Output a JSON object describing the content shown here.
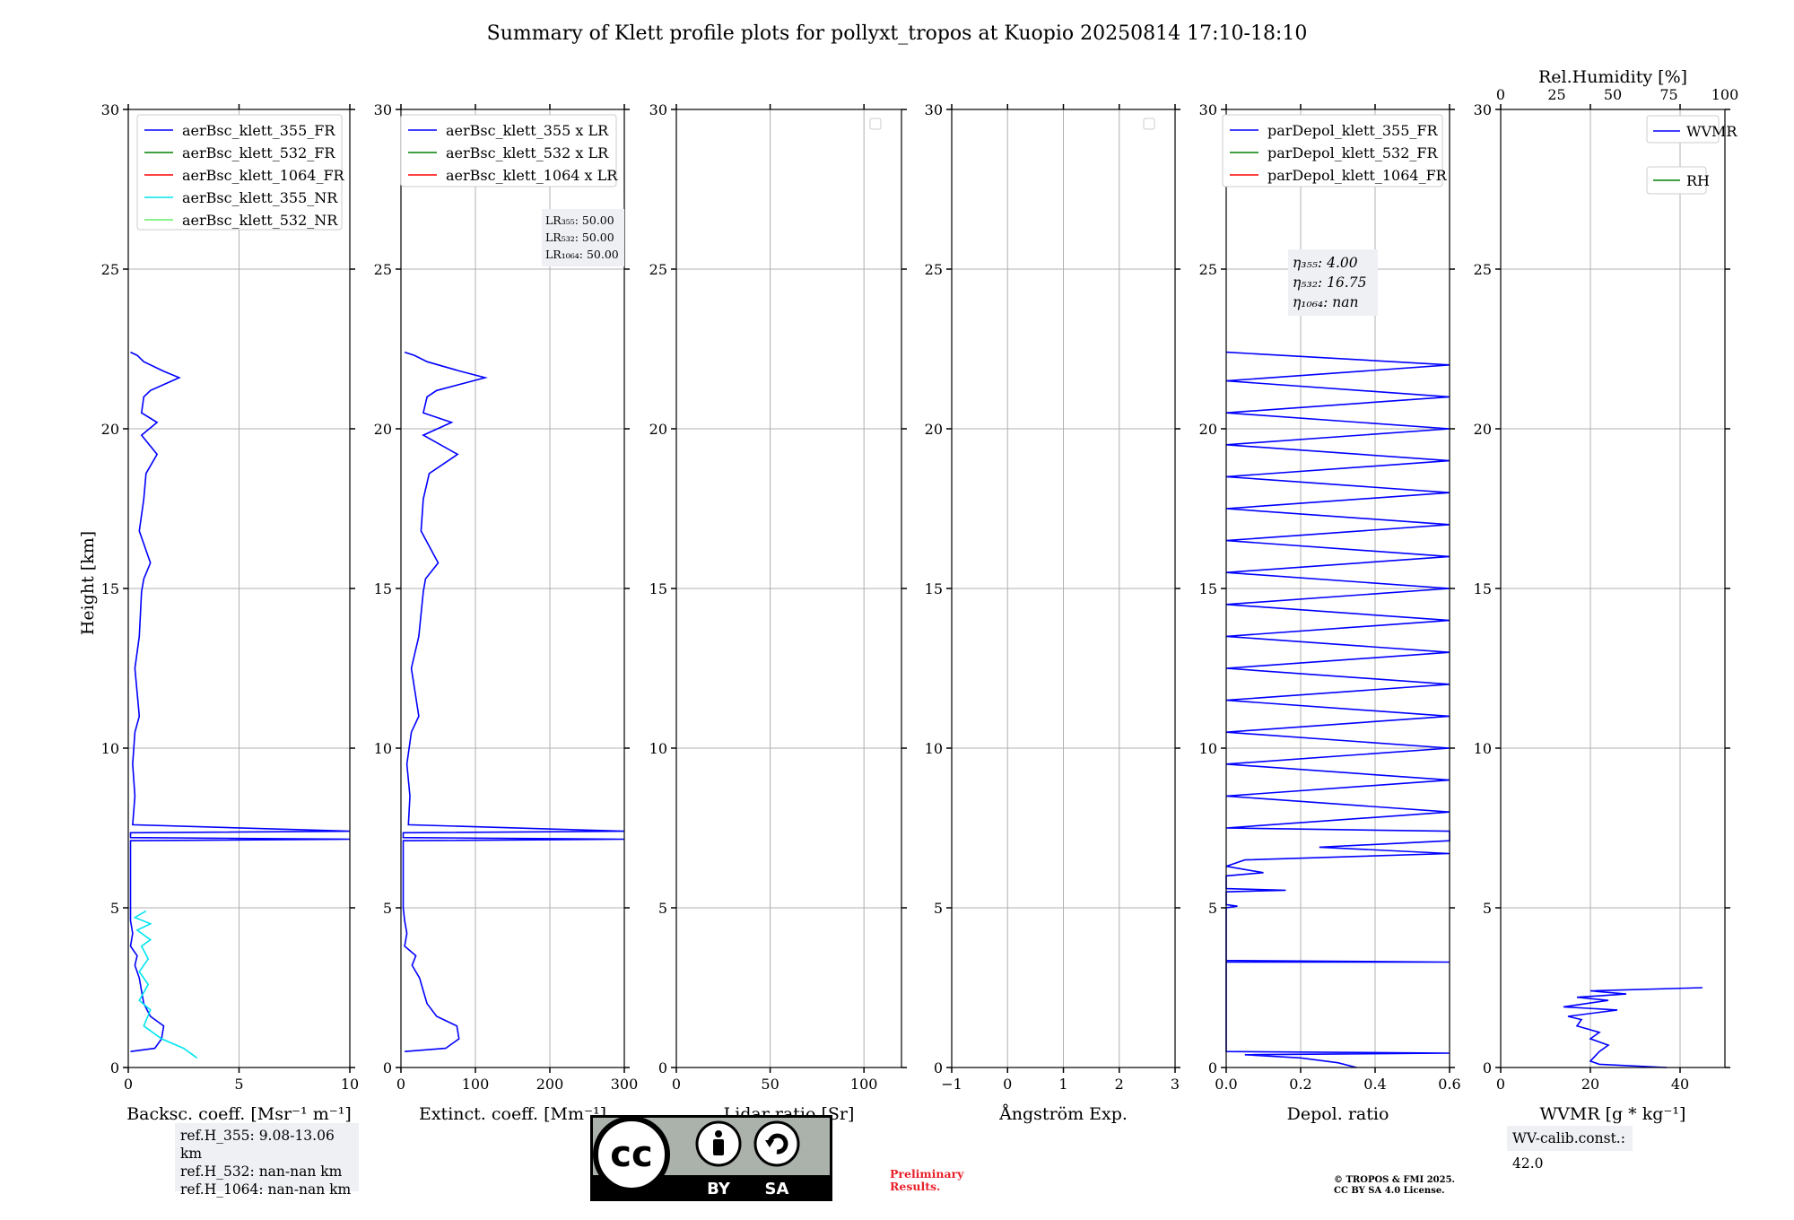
{
  "title": "Summary of Klett profile plots for pollyxt_tropos at Kuopio 20250814 17:10-18:10",
  "ylabel": "Height [km]",
  "y_ticks": [
    "0",
    "5",
    "10",
    "15",
    "20",
    "25",
    "30"
  ],
  "colors": {
    "c355": "#0000ff",
    "c532": "#008000",
    "c1064": "#ff0000",
    "c355nr": "#00e5ee",
    "c532nr": "#66ee66"
  },
  "panels": {
    "bsc": {
      "xlabel": "Backsc. coeff. [Msr⁻¹ m⁻¹]",
      "xticks": [
        "0",
        "5",
        "10"
      ],
      "legend": [
        "aerBsc_klett_355_FR",
        "aerBsc_klett_532_FR",
        "aerBsc_klett_1064_FR",
        "aerBsc_klett_355_NR",
        "aerBsc_klett_532_NR"
      ]
    },
    "ext": {
      "xlabel": "Extinct. coeff. [Mm⁻¹]",
      "xticks": [
        "0",
        "100",
        "200",
        "300"
      ],
      "legend": [
        "aerBsc_klett_355 x LR",
        "aerBsc_klett_532 x LR",
        "aerBsc_klett_1064 x LR"
      ],
      "lr_text": [
        "LR₃₅₅: 50.00",
        "LR₅₃₂: 50.00",
        "LR₁₀₆₄: 50.00"
      ]
    },
    "lr": {
      "xlabel": "Lidar ratio [Sr]",
      "xticks": [
        "0",
        "50",
        "100"
      ]
    },
    "ang": {
      "xlabel": "Ångström Exp.",
      "xticks": [
        "−1",
        "0",
        "1",
        "2",
        "3"
      ]
    },
    "dep": {
      "xlabel": "Depol. ratio",
      "xticks": [
        "0.0",
        "0.2",
        "0.4",
        "0.6"
      ],
      "legend": [
        "parDepol_klett_355_FR",
        "parDepol_klett_532_FR",
        "parDepol_klett_1064_FR"
      ],
      "eta_text": [
        "η₃₅₅: 4.00",
        "η₅₃₂: 16.75",
        "η₁₀₆₄: nan"
      ]
    },
    "wv": {
      "xlabel": "WVMR [g * kg⁻¹]",
      "xticks": [
        "0",
        "20",
        "40"
      ],
      "top_label": "Rel.Humidity [%]",
      "top_ticks": [
        "0",
        "25",
        "50",
        "75",
        "100"
      ],
      "legend_wvmr": "WVMR",
      "legend_rh": "RH"
    }
  },
  "ref_text": [
    "ref.H_355: 9.08-13.06 km",
    "ref.H_532: nan-nan km",
    "ref.H_1064: nan-nan km"
  ],
  "wv_calib": "WV-calib.const.: 42.0",
  "preliminary": [
    "Preliminary",
    "Results."
  ],
  "copyright": [
    "© TROPOS & FMI 2025.",
    "CC BY SA 4.0 License."
  ],
  "cc_labels": {
    "cc": "cc",
    "by": "BY",
    "sa": "SA"
  },
  "chart_data": [
    {
      "type": "line",
      "name": "bsc",
      "title": "Backsc. coeff.",
      "xlim": [
        0,
        10
      ],
      "ylim": [
        0,
        30
      ],
      "series": [
        {
          "name": "aerBsc_klett_355_FR",
          "points": [
            [
              0.1,
              0.5
            ],
            [
              1.2,
              0.6
            ],
            [
              1.5,
              0.9
            ],
            [
              1.6,
              1.3
            ],
            [
              1.0,
              1.6
            ],
            [
              0.7,
              2.0
            ],
            [
              0.6,
              2.4
            ],
            [
              0.5,
              2.8
            ],
            [
              0.3,
              3.2
            ],
            [
              0.4,
              3.5
            ],
            [
              0.1,
              3.8
            ],
            [
              0.2,
              4.2
            ],
            [
              0.1,
              4.6
            ],
            [
              0.1,
              5.0
            ],
            [
              0.1,
              6.5
            ],
            [
              0.1,
              7.1
            ],
            [
              10,
              7.15
            ],
            [
              0.1,
              7.2
            ],
            [
              0.1,
              7.35
            ],
            [
              10,
              7.4
            ],
            [
              0.2,
              7.6
            ],
            [
              0.3,
              8.5
            ],
            [
              0.2,
              9.5
            ],
            [
              0.3,
              10.5
            ],
            [
              0.5,
              11.0
            ],
            [
              0.3,
              12.5
            ],
            [
              0.5,
              13.5
            ],
            [
              0.6,
              14.9
            ],
            [
              0.7,
              15.3
            ],
            [
              1.0,
              15.8
            ],
            [
              0.5,
              16.8
            ],
            [
              0.7,
              17.8
            ],
            [
              0.8,
              18.6
            ],
            [
              1.3,
              19.2
            ],
            [
              0.6,
              19.8
            ],
            [
              1.3,
              20.2
            ],
            [
              0.6,
              20.5
            ],
            [
              0.7,
              21.0
            ],
            [
              1.0,
              21.2
            ],
            [
              2.3,
              21.6
            ],
            [
              1.6,
              21.8
            ],
            [
              0.7,
              22.1
            ],
            [
              0.4,
              22.3
            ],
            [
              0.1,
              22.4
            ]
          ]
        },
        {
          "name": "aerBsc_klett_355_NR",
          "points": [
            [
              3.1,
              0.3
            ],
            [
              2.5,
              0.6
            ],
            [
              1.5,
              0.9
            ],
            [
              0.7,
              1.3
            ],
            [
              1.0,
              1.8
            ],
            [
              0.5,
              2.1
            ],
            [
              0.9,
              2.6
            ],
            [
              0.5,
              3.0
            ],
            [
              0.9,
              3.4
            ],
            [
              0.6,
              3.8
            ],
            [
              1.0,
              4.0
            ],
            [
              0.4,
              4.3
            ],
            [
              1.0,
              4.5
            ],
            [
              0.3,
              4.7
            ],
            [
              0.8,
              4.9
            ]
          ]
        }
      ]
    },
    {
      "type": "line",
      "name": "ext",
      "title": "Extinct. coeff.",
      "xlim": [
        0,
        300
      ],
      "ylim": [
        0,
        30
      ],
      "series": [
        {
          "name": "aerBsc_klett_355 x LR",
          "points": [
            [
              5,
              0.5
            ],
            [
              60,
              0.6
            ],
            [
              78,
              0.9
            ],
            [
              75,
              1.3
            ],
            [
              48,
              1.6
            ],
            [
              35,
              2.0
            ],
            [
              30,
              2.4
            ],
            [
              25,
              2.8
            ],
            [
              15,
              3.2
            ],
            [
              20,
              3.5
            ],
            [
              5,
              3.8
            ],
            [
              8,
              4.2
            ],
            [
              5,
              4.6
            ],
            [
              3,
              5.0
            ],
            [
              3,
              6.5
            ],
            [
              3,
              7.1
            ],
            [
              300,
              7.15
            ],
            [
              3,
              7.2
            ],
            [
              3,
              7.35
            ],
            [
              300,
              7.4
            ],
            [
              10,
              7.6
            ],
            [
              12,
              8.5
            ],
            [
              8,
              9.5
            ],
            [
              14,
              10.5
            ],
            [
              24,
              11.0
            ],
            [
              14,
              12.5
            ],
            [
              24,
              13.5
            ],
            [
              30,
              14.9
            ],
            [
              33,
              15.3
            ],
            [
              50,
              15.8
            ],
            [
              27,
              16.8
            ],
            [
              30,
              17.8
            ],
            [
              38,
              18.6
            ],
            [
              76,
              19.2
            ],
            [
              30,
              19.8
            ],
            [
              68,
              20.2
            ],
            [
              30,
              20.5
            ],
            [
              35,
              21.0
            ],
            [
              48,
              21.2
            ],
            [
              113,
              21.6
            ],
            [
              80,
              21.8
            ],
            [
              35,
              22.1
            ],
            [
              18,
              22.3
            ],
            [
              5,
              22.4
            ]
          ]
        }
      ]
    },
    {
      "type": "line",
      "name": "lr",
      "title": "Lidar ratio",
      "xlim": [
        0,
        120
      ],
      "ylim": [
        0,
        30
      ],
      "series": []
    },
    {
      "type": "line",
      "name": "ang",
      "title": "Ångström Exp.",
      "xlim": [
        -1,
        3
      ],
      "ylim": [
        0,
        30
      ],
      "series": []
    },
    {
      "type": "line",
      "name": "dep",
      "title": "Depol. ratio",
      "xlim": [
        0,
        0.6
      ],
      "ylim": [
        0,
        30
      ],
      "series": [
        {
          "name": "parDepol_klett_355_FR",
          "points": [
            [
              0.35,
              0
            ],
            [
              0.3,
              0.15
            ],
            [
              0.2,
              0.3
            ],
            [
              0.05,
              0.4
            ],
            [
              0.6,
              0.45
            ],
            [
              0,
              0.5
            ],
            [
              0,
              3.3
            ],
            [
              0.6,
              3.3
            ],
            [
              0,
              3.35
            ],
            [
              0,
              5.0
            ],
            [
              0.03,
              5.05
            ],
            [
              0,
              5.1
            ],
            [
              0,
              5.5
            ],
            [
              0.16,
              5.55
            ],
            [
              0,
              5.6
            ],
            [
              0,
              6.0
            ],
            [
              0.1,
              6.1
            ],
            [
              0,
              6.3
            ],
            [
              0.05,
              6.5
            ],
            [
              0.6,
              6.7
            ],
            [
              0.25,
              6.9
            ],
            [
              0.6,
              7.1
            ],
            [
              0.6,
              7.4
            ],
            [
              0,
              7.5
            ],
            [
              0.6,
              8
            ],
            [
              0,
              8.5
            ],
            [
              0.6,
              9
            ],
            [
              0,
              9.5
            ],
            [
              0.6,
              10
            ],
            [
              0,
              10.5
            ],
            [
              0.6,
              11
            ],
            [
              0,
              11.5
            ],
            [
              0.6,
              12
            ],
            [
              0,
              12.5
            ],
            [
              0.6,
              13
            ],
            [
              0,
              13.5
            ],
            [
              0.6,
              14
            ],
            [
              0,
              14.5
            ],
            [
              0.6,
              15
            ],
            [
              0,
              15.5
            ],
            [
              0.6,
              16
            ],
            [
              0,
              16.5
            ],
            [
              0.6,
              17
            ],
            [
              0,
              17.5
            ],
            [
              0.6,
              18
            ],
            [
              0,
              18.5
            ],
            [
              0.6,
              19
            ],
            [
              0,
              19.5
            ],
            [
              0.6,
              20
            ],
            [
              0,
              20.5
            ],
            [
              0.6,
              21
            ],
            [
              0,
              21.5
            ],
            [
              0.6,
              22
            ],
            [
              0,
              22.4
            ]
          ]
        }
      ]
    },
    {
      "type": "line",
      "name": "wv",
      "title": "WVMR",
      "xlim": [
        0,
        50
      ],
      "ylim": [
        0,
        30
      ],
      "top_xlim": [
        0,
        100
      ],
      "series": [
        {
          "name": "WVMR",
          "points": [
            [
              37,
              0
            ],
            [
              22,
              0.1
            ],
            [
              20,
              0.2
            ],
            [
              22,
              0.5
            ],
            [
              24,
              0.7
            ],
            [
              20,
              0.9
            ],
            [
              22,
              1.1
            ],
            [
              17,
              1.3
            ],
            [
              18,
              1.5
            ],
            [
              15,
              1.6
            ],
            [
              26,
              1.8
            ],
            [
              14,
              1.9
            ],
            [
              24,
              2.1
            ],
            [
              17,
              2.2
            ],
            [
              28,
              2.3
            ],
            [
              20,
              2.4
            ],
            [
              45,
              2.5
            ]
          ]
        }
      ]
    }
  ]
}
